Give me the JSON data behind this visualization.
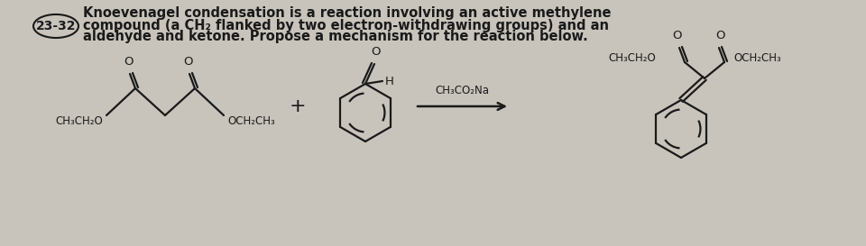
{
  "bg_color": "#c8c4bc",
  "text_color": "#1a1a1a",
  "title_num": "23-32",
  "title_text_line1": "Knoevenagel condensation is a reaction involving an active methylene",
  "title_text_line2": "compound (a CH₂ flanked by two electron-withdrawing groups) and an",
  "title_text_line3": "aldehyde and ketone. Propose a mechanism for the reaction below.",
  "font_size_title": 10.5,
  "font_size_chem": 8.5,
  "reagent_label": "CH₃CO₂Na",
  "reactant1_left": "CH₃CH₂O",
  "reactant1_right": "OCH₂CH₃",
  "product_left": "CH₃CH₂O",
  "product_right": "OCH₂CH₃",
  "lw": 1.6
}
